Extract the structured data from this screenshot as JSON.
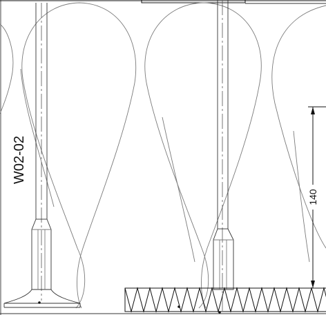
{
  "drawing": {
    "wall_tag": "W02-02",
    "dimension_value": "140"
  },
  "colors": {
    "line": "#7a7a7a",
    "dark_line": "#111111",
    "background": "#ffffff"
  }
}
